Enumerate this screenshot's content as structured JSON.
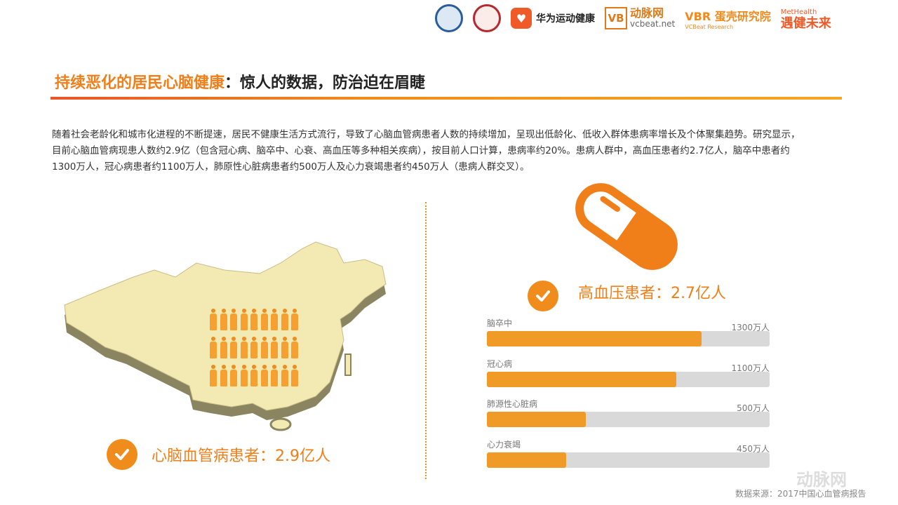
{
  "header": {
    "logos": [
      {
        "name": "association-logo-blue"
      },
      {
        "name": "association-logo-red"
      },
      {
        "name": "huawei-health",
        "text": "华为运动健康"
      },
      {
        "name": "vcbeat",
        "text": "动脉网",
        "sub": "vcbeat.net",
        "mark": "VB"
      },
      {
        "name": "vbr",
        "text": "蛋壳研究院",
        "sub": "VCBeat Research",
        "mark": "VBR"
      },
      {
        "name": "methealth",
        "text": "遇健未来",
        "sub": "MetHealth"
      }
    ]
  },
  "title": {
    "highlight": "持续恶化的居民心脑健康",
    "rest": "：惊人的数据，防治迫在眉睫"
  },
  "intro": "随着社会老龄化和城市化进程的不断提速，居民不健康生活方式流行，导致了心脑血管病患者人数的持续增加，呈现出低龄化、低收入群体患病率增长及个体聚集趋势。研究显示，目前心脑血管病现患人数约2.9亿（包含冠心病、脑卒中、心衰、高血压等多种相关疾病），按目前人口计算，患病率约20%。患病人群中，高血压患者约2.7亿人，脑卒中患者约1300万人，冠心病患者约1100万人，肺原性心脏病患者约500万人及心力衰竭患者约450万人（患病人群交叉）。",
  "left": {
    "stat": "心脑血管病患者：2.9亿人",
    "people_count": 27
  },
  "right": {
    "stat": "高血压患者：2.7亿人"
  },
  "chart_data": {
    "type": "bar",
    "orientation": "horizontal",
    "categories": [
      "脑卒中",
      "冠心病",
      "肺源性心脏病",
      "心力衰竭"
    ],
    "values": [
      1300,
      1100,
      500,
      450
    ],
    "value_labels": [
      "1300万人",
      "1100万人",
      "500万人",
      "450万人"
    ],
    "fill_fractions": [
      0.76,
      0.67,
      0.35,
      0.28
    ],
    "bar_color": "#f09a28",
    "track_color": "#d9d9d9"
  },
  "source": "数据来源：2017中国心血管病报告",
  "watermark": {
    "text": "动脉网",
    "sub": "vcbeat.net"
  },
  "colors": {
    "accent": "#f07f1a"
  }
}
